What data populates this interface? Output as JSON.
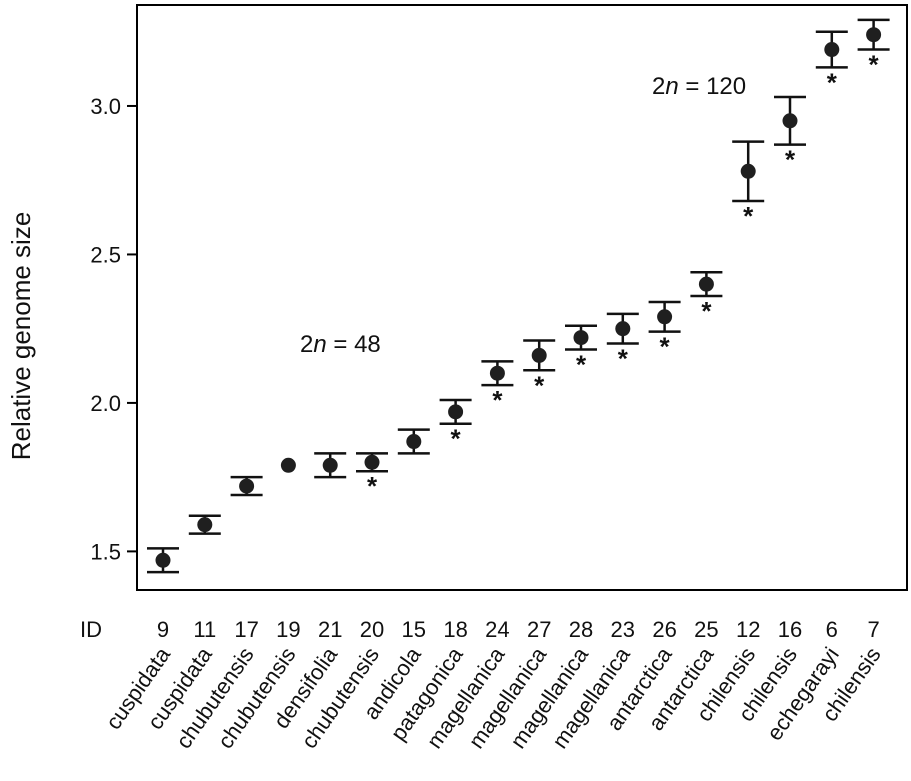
{
  "chart_data": {
    "type": "scatter",
    "ylabel": "Relative genome size",
    "xlabel": "",
    "ylim": [
      1.37,
      3.34
    ],
    "yticks": [
      1.5,
      2.0,
      2.5,
      3.0
    ],
    "id_prefix": "ID",
    "annotations": [
      {
        "label": "2n = 48",
        "prefix": "2",
        "italic": "n",
        "suffix": " = 48"
      },
      {
        "label": "2n = 120",
        "prefix": "2",
        "italic": "n",
        "suffix": " = 120"
      }
    ],
    "significance_marker": "*",
    "points": [
      {
        "id": "9",
        "name": "cuspidata",
        "y": 1.47,
        "ylow": 1.43,
        "yhigh": 1.51,
        "sig": false
      },
      {
        "id": "11",
        "name": "cuspidata",
        "y": 1.59,
        "ylow": 1.56,
        "yhigh": 1.62,
        "sig": false
      },
      {
        "id": "17",
        "name": "chubutensis",
        "y": 1.72,
        "ylow": 1.69,
        "yhigh": 1.75,
        "sig": false
      },
      {
        "id": "19",
        "name": "chubutensis",
        "y": 1.79,
        "ylow": null,
        "yhigh": null,
        "sig": false
      },
      {
        "id": "21",
        "name": "densifolia",
        "y": 1.79,
        "ylow": 1.75,
        "yhigh": 1.83,
        "sig": false
      },
      {
        "id": "20",
        "name": "chubutensis",
        "y": 1.8,
        "ylow": 1.77,
        "yhigh": 1.83,
        "sig": true
      },
      {
        "id": "15",
        "name": "andicola",
        "y": 1.87,
        "ylow": 1.83,
        "yhigh": 1.91,
        "sig": false
      },
      {
        "id": "18",
        "name": "patagonica",
        "y": 1.97,
        "ylow": 1.93,
        "yhigh": 2.01,
        "sig": true
      },
      {
        "id": "24",
        "name": "magellanica",
        "y": 2.1,
        "ylow": 2.06,
        "yhigh": 2.14,
        "sig": true
      },
      {
        "id": "27",
        "name": "magellanica",
        "y": 2.16,
        "ylow": 2.11,
        "yhigh": 2.21,
        "sig": true
      },
      {
        "id": "28",
        "name": "magellanica",
        "y": 2.22,
        "ylow": 2.18,
        "yhigh": 2.26,
        "sig": true
      },
      {
        "id": "23",
        "name": "magellanica",
        "y": 2.25,
        "ylow": 2.2,
        "yhigh": 2.3,
        "sig": true
      },
      {
        "id": "26",
        "name": "antarctica",
        "y": 2.29,
        "ylow": 2.24,
        "yhigh": 2.34,
        "sig": true
      },
      {
        "id": "25",
        "name": "antarctica",
        "y": 2.4,
        "ylow": 2.36,
        "yhigh": 2.44,
        "sig": true
      },
      {
        "id": "12",
        "name": "chilensis",
        "y": 2.78,
        "ylow": 2.68,
        "yhigh": 2.88,
        "sig": true
      },
      {
        "id": "16",
        "name": "chilensis",
        "y": 2.95,
        "ylow": 2.87,
        "yhigh": 3.03,
        "sig": true
      },
      {
        "id": "6",
        "name": "echegarayi",
        "y": 3.19,
        "ylow": 3.13,
        "yhigh": 3.25,
        "sig": true
      },
      {
        "id": "7",
        "name": "chilensis",
        "y": 3.24,
        "ylow": 3.19,
        "yhigh": 3.29,
        "sig": true
      }
    ],
    "colors": {
      "marker": "#1f1f1f",
      "axis": "#000000"
    }
  }
}
